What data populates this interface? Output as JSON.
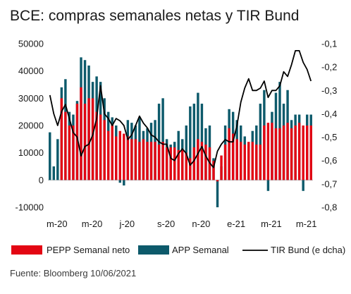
{
  "chart_data": {
    "type": "bar",
    "title": "BCE: compras semanales netas y TIR Bund",
    "source": "Fuente: Bloomberg 10/06/2021",
    "y_left": {
      "ylim": [
        -10000,
        50000
      ],
      "ticks": [
        -10000,
        0,
        10000,
        20000,
        30000,
        40000,
        50000
      ]
    },
    "y_right": {
      "ylim": [
        -0.8,
        -0.1
      ],
      "ticks": [
        -0.8,
        -0.7,
        -0.6,
        -0.5,
        -0.4,
        -0.3,
        -0.2,
        -0.1
      ],
      "tick_labels": [
        "-0,8",
        "-0,7",
        "-0,6",
        "-0,5",
        "-0,4",
        "-0,3",
        "-0,2",
        "-0,1"
      ]
    },
    "x_ticks": [
      {
        "label": "m-20",
        "index": 0
      },
      {
        "label": "m-20",
        "index": 9
      },
      {
        "label": "j-20",
        "index": 18
      },
      {
        "label": "s-20",
        "index": 28
      },
      {
        "label": "n-20",
        "index": 37
      },
      {
        "label": "e-21",
        "index": 46
      },
      {
        "label": "m-21",
        "index": 55
      },
      {
        "label": "m-21",
        "index": 64
      }
    ],
    "colors": {
      "pepp": "#e30613",
      "app": "#0d5a6b",
      "bund": "#000000"
    },
    "series": [
      {
        "name": "PEPP Semanal neto",
        "values": [
          0,
          0,
          0,
          30000,
          25000,
          20000,
          20000,
          28000,
          34000,
          28000,
          30000,
          30000,
          25000,
          24000,
          22000,
          18000,
          20000,
          16000,
          18000,
          17000,
          16000,
          15000,
          15000,
          14000,
          15000,
          14000,
          14000,
          14000,
          13000,
          14000,
          12000,
          12000,
          12000,
          11000,
          11000,
          10000,
          8000,
          12000,
          15000,
          14000,
          13000,
          12000,
          7000,
          -500,
          9000,
          13000,
          19000,
          17000,
          15000,
          14000,
          13000,
          14000,
          14000,
          13000,
          13000,
          20000,
          21000,
          21000,
          19000,
          19000,
          20000,
          21000,
          19000,
          20000,
          21000,
          20000,
          20000,
          20000
        ]
      },
      {
        "name": "APP Semanal",
        "values": [
          17500,
          5000,
          15000,
          34000,
          37000,
          25000,
          24000,
          29000,
          45000,
          44000,
          42000,
          36000,
          38000,
          36000,
          30000,
          25000,
          23000,
          20000,
          -1000,
          -2000,
          22000,
          21000,
          20000,
          23000,
          18000,
          19000,
          21000,
          22000,
          28000,
          30000,
          15000,
          13000,
          14000,
          18000,
          15000,
          20000,
          27000,
          28000,
          32000,
          28000,
          19000,
          20000,
          8000,
          -10000,
          5000,
          20000,
          26000,
          25000,
          22000,
          20000,
          16000,
          13000,
          18000,
          20000,
          28000,
          33000,
          -4000,
          25000,
          32000,
          36000,
          28000,
          33000,
          22000,
          24000,
          24000,
          -4000,
          24000,
          24000
        ]
      },
      {
        "name": "TIR Bund (e dcha)",
        "values": [
          -0.32,
          -0.4,
          -0.45,
          -0.39,
          -0.36,
          -0.42,
          -0.48,
          -0.5,
          -0.58,
          -0.54,
          -0.53,
          -0.49,
          -0.42,
          -0.28,
          -0.4,
          -0.42,
          -0.45,
          -0.42,
          -0.43,
          -0.45,
          -0.51,
          -0.49,
          -0.45,
          -0.41,
          -0.44,
          -0.46,
          -0.49,
          -0.5,
          -0.52,
          -0.53,
          -0.53,
          -0.59,
          -0.6,
          -0.57,
          -0.55,
          -0.57,
          -0.62,
          -0.6,
          -0.57,
          -0.54,
          -0.58,
          -0.61,
          -0.63,
          -0.56,
          -0.53,
          -0.51,
          -0.52,
          -0.52,
          -0.45,
          -0.35,
          -0.29,
          -0.25,
          -0.3,
          -0.3,
          -0.29,
          -0.26,
          -0.33,
          -0.3,
          -0.3,
          -0.28,
          -0.22,
          -0.24,
          -0.19,
          -0.13,
          -0.13,
          -0.18,
          -0.21,
          -0.26
        ]
      }
    ],
    "legend": {
      "placement": "bottom"
    }
  }
}
